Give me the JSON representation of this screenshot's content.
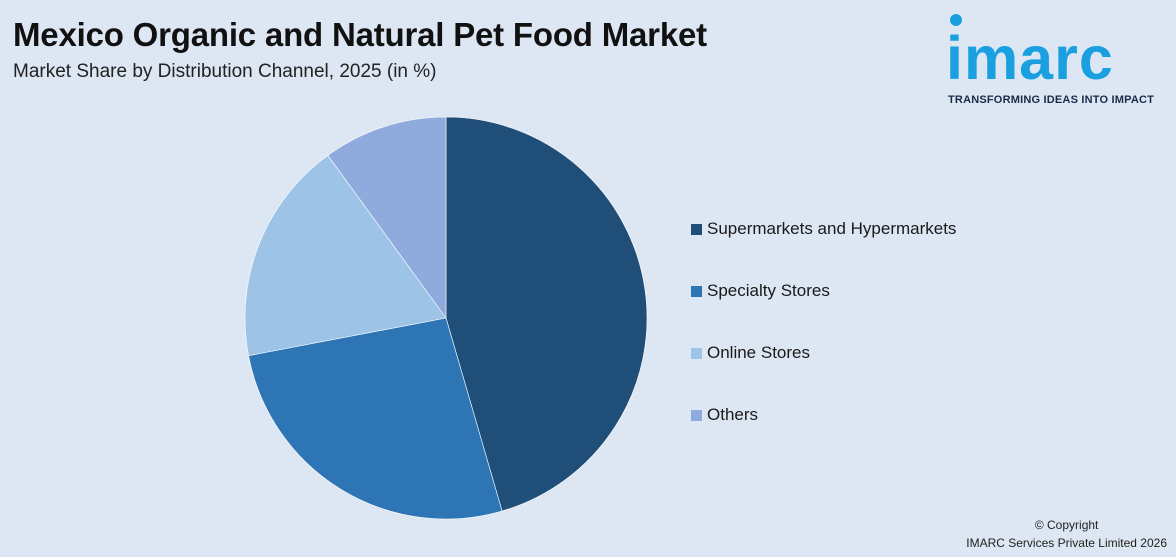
{
  "header": {
    "title": "Mexico Organic and Natural Pet Food Market",
    "subtitle": "Market Share by Distribution Channel, 2025 (in %)"
  },
  "logo": {
    "wordmark": "imarc",
    "tagline": "TRANSFORMING IDEAS INTO IMPACT",
    "color": "#1aa0e0"
  },
  "chart_data": {
    "type": "pie",
    "title": "Mexico Organic and Natural Pet Food Market",
    "subtitle": "Market Share by Distribution Channel, 2025 (in %)",
    "legend_position": "right",
    "categories": [
      "Supermarkets and Hypermarkets",
      "Specialty Stores",
      "Online Stores",
      "Others"
    ],
    "values": [
      45.5,
      26.5,
      18.0,
      10.0
    ],
    "colors": [
      "#1f4e79",
      "#2e75b6",
      "#9dc3e6",
      "#8faadc"
    ]
  },
  "footer": {
    "copyright_line1": "© Copyright",
    "copyright_line2": "IMARC Services Private Limited 2026"
  }
}
